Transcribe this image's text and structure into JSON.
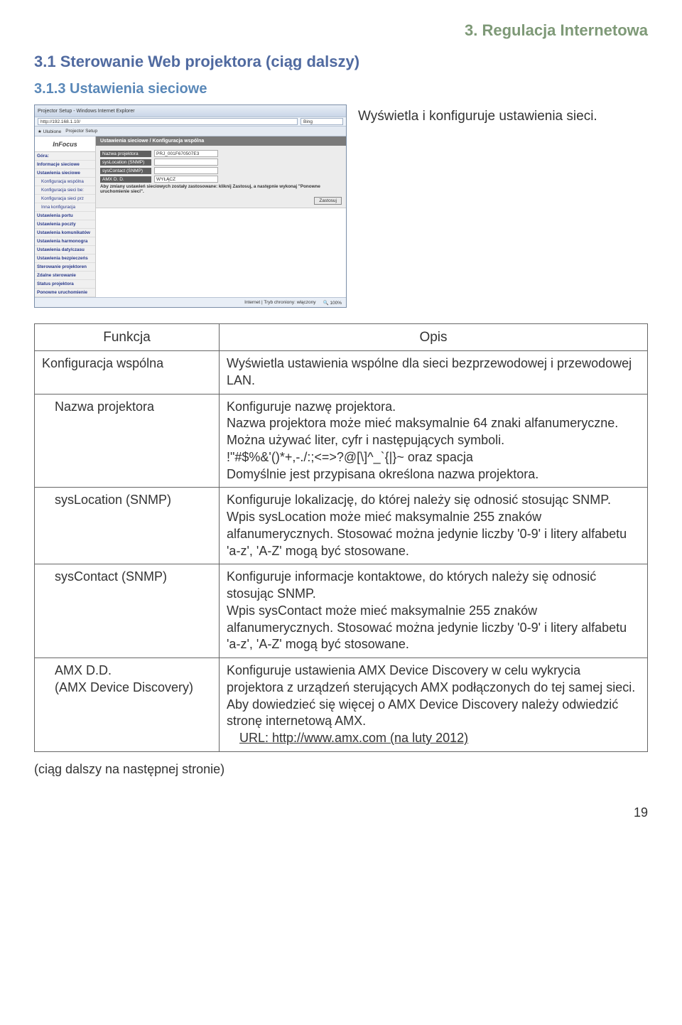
{
  "colors": {
    "chapter_header": "#7e9977",
    "h2": "#506aa0",
    "h3": "#5a88b8",
    "body_text": "#333333",
    "border": "#666666"
  },
  "chapter_header": "3. Regulacja Internetowa",
  "section_h2": "3.1 Sterowanie Web projektora (ciąg dalszy)",
  "section_h3": "3.1.3 Ustawienia sieciowe",
  "intro_text": "Wyświetla i konfiguruje ustawienia sieci.",
  "screenshot": {
    "titlebar": "Projector Setup - Windows Internet Explorer",
    "address": "http://192.168.1.10/",
    "search_engine": "Bing",
    "tab_label": "Projector Setup",
    "logo": "InFocus",
    "side_items": [
      "Góra:",
      "Informacje sieciowe",
      "Ustawienia sieciowe",
      "Konfiguracja wspólna",
      "Konfiguracja sieci be:",
      "Konfiguracja sieci prz",
      "Inna konfiguracja",
      "Ustawienia portu",
      "Ustawienia poczty",
      "Ustawienia komunikatów",
      "Ustawienia harmonogra",
      "Ustawienia daty/czasu",
      "Ustawienia bezpieczeńs",
      "Sterowanie projektoren",
      "Zdalne sterowanie",
      "Status projektora",
      "Ponowne uruchomienie"
    ],
    "breadcrumb": "Ustawienia sieciowe / Konfiguracja wspólna",
    "form_rows": [
      {
        "label": "Nazwa projektora",
        "value": "PRJ_001F670507E3"
      },
      {
        "label": "sysLocation (SNMP)",
        "value": ""
      },
      {
        "label": "sysContact (SNMP)",
        "value": ""
      },
      {
        "label": "AMX D. D.",
        "value": "WYŁĄCZ"
      }
    ],
    "form_note": "Aby zmiany ustawień sieciowych zostały zastosowane: kliknij Zastosuj, a następnie wykonaj \"Ponowne uruchomienie sieci\".",
    "apply_btn": "Zastosuj",
    "status_left": "Internet | Tryb chroniony: włączony",
    "status_right": "🔍 100%"
  },
  "table": {
    "head_fn": "Funkcja",
    "head_desc": "Opis",
    "rows": [
      {
        "fn": "Konfiguracja wspólna",
        "indent": false,
        "desc": "Wyświetla ustawienia wspólne dla sieci bezprzewodowej i przewodowej LAN."
      },
      {
        "fn": "Nazwa projektora",
        "indent": true,
        "desc": "Konfiguruje nazwę projektora.\nNazwa projektora może mieć maksymalnie 64 znaki alfanumeryczne. Można używać liter, cyfr i następujących symboli.\n !\"#$%&'()*+,-./:;<=>?@[\\]^_`{|}~ oraz spacja\nDomyślnie jest przypisana określona nazwa projektora."
      },
      {
        "fn": "sysLocation (SNMP)",
        "indent": true,
        "desc": "Konfiguruje lokalizację, do której należy się odnosić stosując SNMP.\nWpis sysLocation może mieć maksymalnie 255 znaków alfanumerycznych. Stosować można jedynie liczby '0-9' i litery alfabetu 'a-z', 'A-Z' mogą być stosowane."
      },
      {
        "fn": "sysContact (SNMP)",
        "indent": true,
        "desc": "Konfiguruje informacje kontaktowe, do których należy się odnosić stosując SNMP.\nWpis sysContact może mieć maksymalnie 255 znaków alfanumerycznych. Stosować można jedynie liczby '0-9' i litery alfabetu 'a-z', 'A-Z' mogą być stosowane."
      },
      {
        "fn": "AMX D.D.\n(AMX Device Discovery)",
        "indent": true,
        "desc": "Konfiguruje ustawienia AMX Device Discovery w celu wykrycia projektora z urządzeń sterujących AMX podłączonych do tej samej sieci. Aby dowiedzieć się więcej o AMX Device Discovery należy odwiedzić stronę internetową AMX.",
        "url_line": "URL: http://www.amx.com   (na luty 2012)"
      }
    ]
  },
  "continuation": "(ciąg dalszy na następnej stronie)",
  "page_number": "19"
}
